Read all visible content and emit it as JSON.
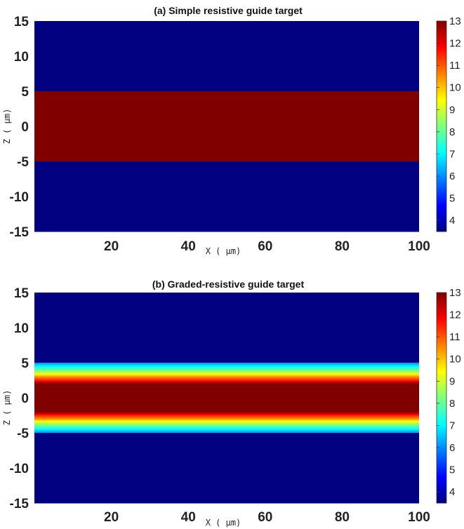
{
  "chart_data": [
    {
      "type": "heatmap",
      "title": "(a) Simple resistive guide target",
      "xlabel": "X ( μm)",
      "ylabel": "Z ( μm)",
      "xlim": [
        0,
        100
      ],
      "ylim": [
        -15,
        15
      ],
      "xticks": [
        20,
        40,
        60,
        80,
        100
      ],
      "yticks": [
        15,
        10,
        5,
        0,
        -5,
        -10,
        -15
      ],
      "colorbar": {
        "clim": [
          3.5,
          13
        ],
        "ticks": [
          13,
          12,
          11,
          10,
          9,
          8,
          7,
          6,
          5,
          4
        ],
        "colormap": "jet"
      },
      "profile": {
        "description_units": "value vs Z (μm), uniform along X",
        "z": [
          -15,
          -5.0,
          -4.99,
          5.0,
          5.01,
          15
        ],
        "value": [
          3.5,
          3.5,
          13,
          13,
          3.5,
          3.5
        ]
      }
    },
    {
      "type": "heatmap",
      "title": "(b) Graded-resistive guide target",
      "xlabel": "X ( μm)",
      "ylabel": "Z ( μm)",
      "xlim": [
        0,
        100
      ],
      "ylim": [
        -15,
        15
      ],
      "xticks": [
        20,
        40,
        60,
        80,
        100
      ],
      "yticks": [
        15,
        10,
        5,
        0,
        -5,
        -10,
        -15
      ],
      "colorbar": {
        "clim": [
          3.5,
          13
        ],
        "ticks": [
          13,
          12,
          11,
          10,
          9,
          8,
          7,
          6,
          5,
          4
        ],
        "colormap": "jet"
      },
      "profile": {
        "description_units": "value vs Z (μm), uniform along X",
        "z": [
          -15,
          -5.0,
          -4.99,
          -4.5,
          -4.0,
          -3.5,
          -3.0,
          -2.5,
          -2.0,
          2.0,
          2.5,
          3.0,
          3.5,
          4.0,
          4.5,
          5.0,
          5.01,
          15
        ],
        "value": [
          3.5,
          3.5,
          6.0,
          7.0,
          8.0,
          9.0,
          10.5,
          11.5,
          13,
          13,
          11.5,
          10.5,
          9.0,
          8.0,
          7.0,
          6.0,
          3.5,
          3.5
        ]
      }
    }
  ]
}
